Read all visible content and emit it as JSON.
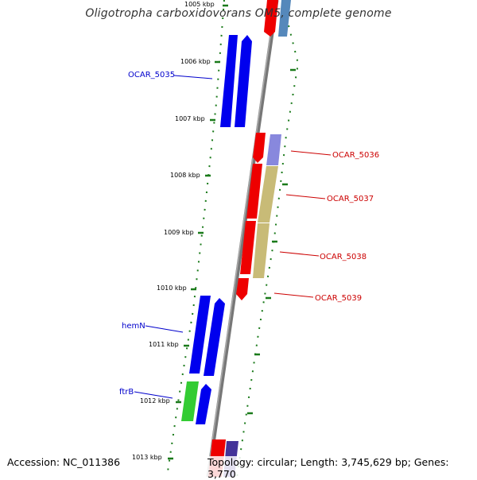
{
  "title": "Oligotropha carboxidovorans OM5, complete genome",
  "accession_text": "Accession: NC_011386",
  "topology_text": "Topology: circular; Length: 3,745,629 bp; Genes: 3,770",
  "ticks": [
    {
      "label": "1005 kbp"
    },
    {
      "label": "1006 kbp"
    },
    {
      "label": "1007 kbp"
    },
    {
      "label": "1008 kbp"
    },
    {
      "label": "1009 kbp"
    },
    {
      "label": "1010 kbp"
    },
    {
      "label": "1011 kbp"
    },
    {
      "label": "1012 kbp"
    },
    {
      "label": "1013 kbp"
    }
  ],
  "gene_labels": [
    {
      "text": "OCAR_5035",
      "color": "#0000cc"
    },
    {
      "text": "hemN",
      "color": "#0000cc"
    },
    {
      "text": "ftrB",
      "color": "#0000cc"
    },
    {
      "text": "OCAR_5036",
      "color": "#cc0000"
    },
    {
      "text": "OCAR_5037",
      "color": "#cc0000"
    },
    {
      "text": "OCAR_5038",
      "color": "#cc0000"
    },
    {
      "text": "OCAR_5039",
      "color": "#cc0000"
    }
  ],
  "colors": {
    "backbone": "#777777",
    "tick": "#1a7a1a",
    "forward_gene": "#0000ee",
    "reverse_gene": "#ee0000",
    "rna_gene": "#33cc33",
    "pale_blue": "#8888dd",
    "khaki": "#c8bb77",
    "steel": "#5588bb",
    "navy": "#443399"
  }
}
